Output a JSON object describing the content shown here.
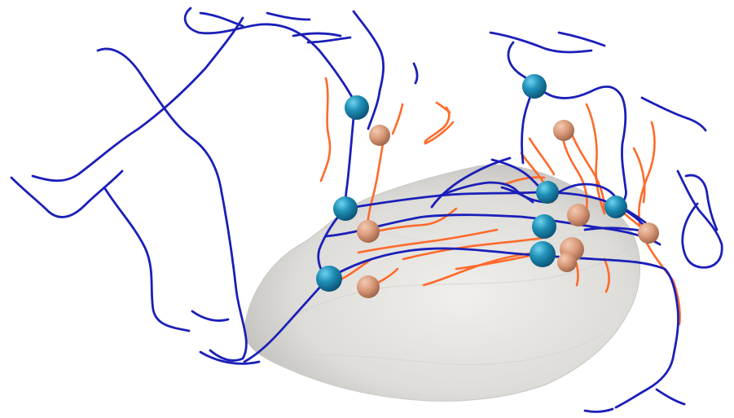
{
  "scene": {
    "background": "#ffffff",
    "surface_color": "#e6e5e2",
    "blue_line_color": "#1b1fb8",
    "orange_line_color": "#ff6a2a",
    "blue_node_color": "#1f8fb4",
    "orange_node_color": "#d79a7a"
  }
}
